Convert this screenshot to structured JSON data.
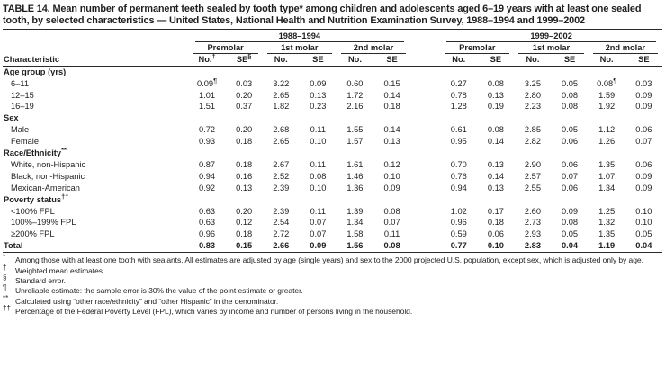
{
  "title": "TABLE 14. Mean number of permanent teeth sealed by tooth type* among children and adolescents aged 6–19 years with at least one sealed tooth, by selected characteristics — United States, National Health and Nutrition Examination Survey, 1988–1994 and 1999–2002",
  "table": {
    "characteristic_header": "Characteristic",
    "periods": [
      "1988–1994",
      "1999–2002"
    ],
    "tooth_types": [
      "Premolar",
      "1st molar",
      "2nd molar"
    ],
    "measure_headers": [
      {
        "label": "No.",
        "sup": "†"
      },
      {
        "label": "SE",
        "sup": "§"
      },
      {
        "label": "No.",
        "sup": ""
      },
      {
        "label": "SE",
        "sup": ""
      },
      {
        "label": "No.",
        "sup": ""
      },
      {
        "label": "SE",
        "sup": ""
      },
      {
        "label": "No.",
        "sup": ""
      },
      {
        "label": "SE",
        "sup": ""
      },
      {
        "label": "No.",
        "sup": ""
      },
      {
        "label": "SE",
        "sup": ""
      },
      {
        "label": "No.",
        "sup": ""
      },
      {
        "label": "SE",
        "sup": ""
      }
    ],
    "rows": [
      {
        "type": "section",
        "label": "Age group (yrs)",
        "sup": ""
      },
      {
        "type": "data",
        "label": "6–11",
        "values": [
          "0.09¶",
          "0.03",
          "3.22",
          "0.09",
          "0.60",
          "0.15",
          "0.27",
          "0.08",
          "3.25",
          "0.05",
          "0.08¶",
          "0.03"
        ]
      },
      {
        "type": "data",
        "label": "12–15",
        "values": [
          "1.01",
          "0.20",
          "2.65",
          "0.13",
          "1.72",
          "0.14",
          "0.78",
          "0.13",
          "2.80",
          "0.08",
          "1.59",
          "0.09"
        ]
      },
      {
        "type": "data",
        "label": "16–19",
        "values": [
          "1.51",
          "0.37",
          "1.82",
          "0.23",
          "2.16",
          "0.18",
          "1.28",
          "0.19",
          "2.23",
          "0.08",
          "1.92",
          "0.09"
        ]
      },
      {
        "type": "section",
        "label": "Sex",
        "sup": ""
      },
      {
        "type": "data",
        "label": "Male",
        "values": [
          "0.72",
          "0.20",
          "2.68",
          "0.11",
          "1.55",
          "0.14",
          "0.61",
          "0.08",
          "2.85",
          "0.05",
          "1.12",
          "0.06"
        ]
      },
      {
        "type": "data",
        "label": "Female",
        "values": [
          "0.93",
          "0.18",
          "2.65",
          "0.10",
          "1.57",
          "0.13",
          "0.95",
          "0.14",
          "2.82",
          "0.06",
          "1.26",
          "0.07"
        ]
      },
      {
        "type": "section",
        "label": "Race/Ethnicity",
        "sup": "**"
      },
      {
        "type": "data",
        "label": "White, non-Hispanic",
        "values": [
          "0.87",
          "0.18",
          "2.67",
          "0.11",
          "1.61",
          "0.12",
          "0.70",
          "0.13",
          "2.90",
          "0.06",
          "1.35",
          "0.06"
        ]
      },
      {
        "type": "data",
        "label": "Black, non-Hispanic",
        "values": [
          "0.94",
          "0.16",
          "2.52",
          "0.08",
          "1.46",
          "0.10",
          "0.76",
          "0.14",
          "2.57",
          "0.07",
          "1.07",
          "0.09"
        ]
      },
      {
        "type": "data",
        "label": "Mexican-American",
        "values": [
          "0.92",
          "0.13",
          "2.39",
          "0.10",
          "1.36",
          "0.09",
          "0.94",
          "0.13",
          "2.55",
          "0.06",
          "1.34",
          "0.09"
        ]
      },
      {
        "type": "section",
        "label": "Poverty status",
        "sup": "††"
      },
      {
        "type": "data",
        "label": "<100% FPL",
        "values": [
          "0.63",
          "0.20",
          "2.39",
          "0.11",
          "1.39",
          "0.08",
          "1.02",
          "0.17",
          "2.60",
          "0.09",
          "1.25",
          "0.10"
        ]
      },
      {
        "type": "data",
        "label": "100%–199% FPL",
        "values": [
          "0.63",
          "0.12",
          "2.54",
          "0.07",
          "1.34",
          "0.07",
          "0.96",
          "0.18",
          "2.73",
          "0.08",
          "1.32",
          "0.10"
        ]
      },
      {
        "type": "data",
        "label": "≥200% FPL",
        "values": [
          "0.96",
          "0.18",
          "2.72",
          "0.07",
          "1.58",
          "0.11",
          "0.59",
          "0.06",
          "2.93",
          "0.05",
          "1.35",
          "0.05"
        ]
      },
      {
        "type": "total",
        "label": "Total",
        "values": [
          "0.83",
          "0.15",
          "2.66",
          "0.09",
          "1.56",
          "0.08",
          "0.77",
          "0.10",
          "2.83",
          "0.04",
          "1.19",
          "0.04"
        ]
      }
    ]
  },
  "footnotes": [
    {
      "marker": "*",
      "text": "Among those with at least one tooth with sealants. All estimates are adjusted by age (single years) and sex to the 2000 projected U.S. population, except sex, which is adjusted only by age."
    },
    {
      "marker": "†",
      "text": "Weighted mean estimates."
    },
    {
      "marker": "§",
      "text": "Standard error."
    },
    {
      "marker": "¶",
      "text": "Unreliable estimate: the sample error is 30% the value of the point estimate or greater."
    },
    {
      "marker": "**",
      "text": "Calculated using “other race/ethnicity” and “other Hispanic” in the denominator."
    },
    {
      "marker": "††",
      "text": "Percentage of the Federal Poverty Level (FPL), which varies by income and number of persons living in the household."
    }
  ]
}
